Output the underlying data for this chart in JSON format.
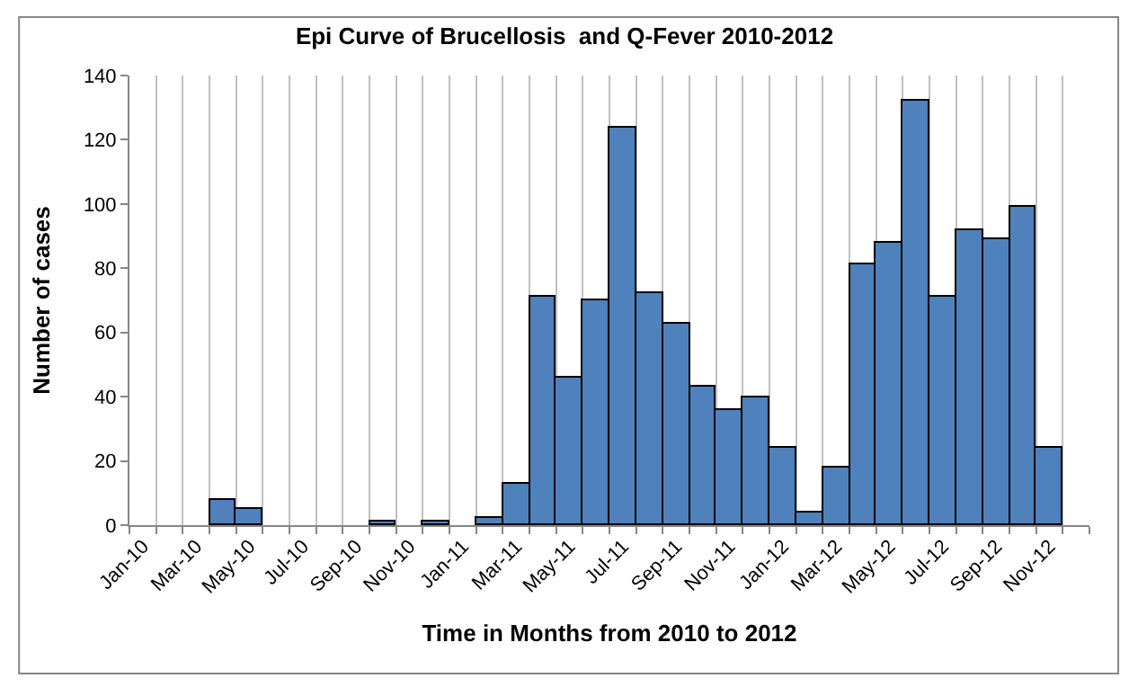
{
  "chart_data": {
    "type": "bar",
    "title": "Epi Curve of Brucellosis  and Q-Fever 2010-2012",
    "xlabel": "Time in Months from 2010 to 2012",
    "ylabel": "Number of cases",
    "categories": [
      "Jan-10",
      null,
      "Mar-10",
      null,
      "May-10",
      null,
      "Jul-10",
      null,
      "Sep-10",
      null,
      "Nov-10",
      null,
      "Jan-11",
      null,
      "Mar-11",
      null,
      "May-11",
      null,
      "Jul-11",
      null,
      "Sep-11",
      null,
      "Nov-11",
      null,
      "Jan-12",
      null,
      "Mar-12",
      null,
      "May-12",
      null,
      "Jul-12",
      null,
      "Sep-12",
      null,
      "Nov-12",
      null
    ],
    "values": [
      0,
      0,
      0,
      8,
      5,
      0,
      0,
      0,
      0,
      1,
      0,
      1,
      0,
      2,
      13,
      71,
      46,
      70,
      124,
      72,
      63,
      43,
      36,
      40,
      24,
      4,
      18,
      81,
      88,
      132,
      71,
      92,
      89,
      99,
      24,
      0
    ],
    "color": "#4f81bd",
    "ylim": [
      0,
      140
    ],
    "yticks": [
      0,
      20,
      40,
      60,
      80,
      100,
      120,
      140
    ],
    "grid": "x"
  }
}
